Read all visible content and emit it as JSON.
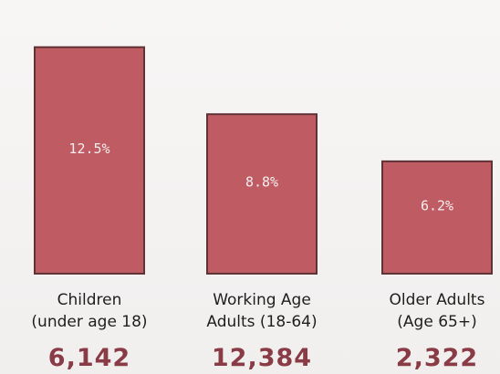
{
  "chart_data": {
    "type": "bar",
    "categories": [
      [
        "Children",
        "(under age 18)"
      ],
      [
        "Working Age",
        "Adults (18-64)"
      ],
      [
        "Older Adults",
        "(Age 65+)"
      ]
    ],
    "values": [
      12.5,
      8.8,
      6.2
    ],
    "value_labels": [
      "12.5%",
      "8.8%",
      "6.2%"
    ],
    "counts": [
      "6,142",
      "12,384",
      "2,322"
    ],
    "ylim": [
      0,
      14.5
    ],
    "grid": false,
    "colors": {
      "bar": "#bf5b63",
      "bar_border": "#5f3236",
      "bar_text": "#f8eded",
      "category_text": "#1f1f1f",
      "count_text": "#8a3c46"
    }
  }
}
